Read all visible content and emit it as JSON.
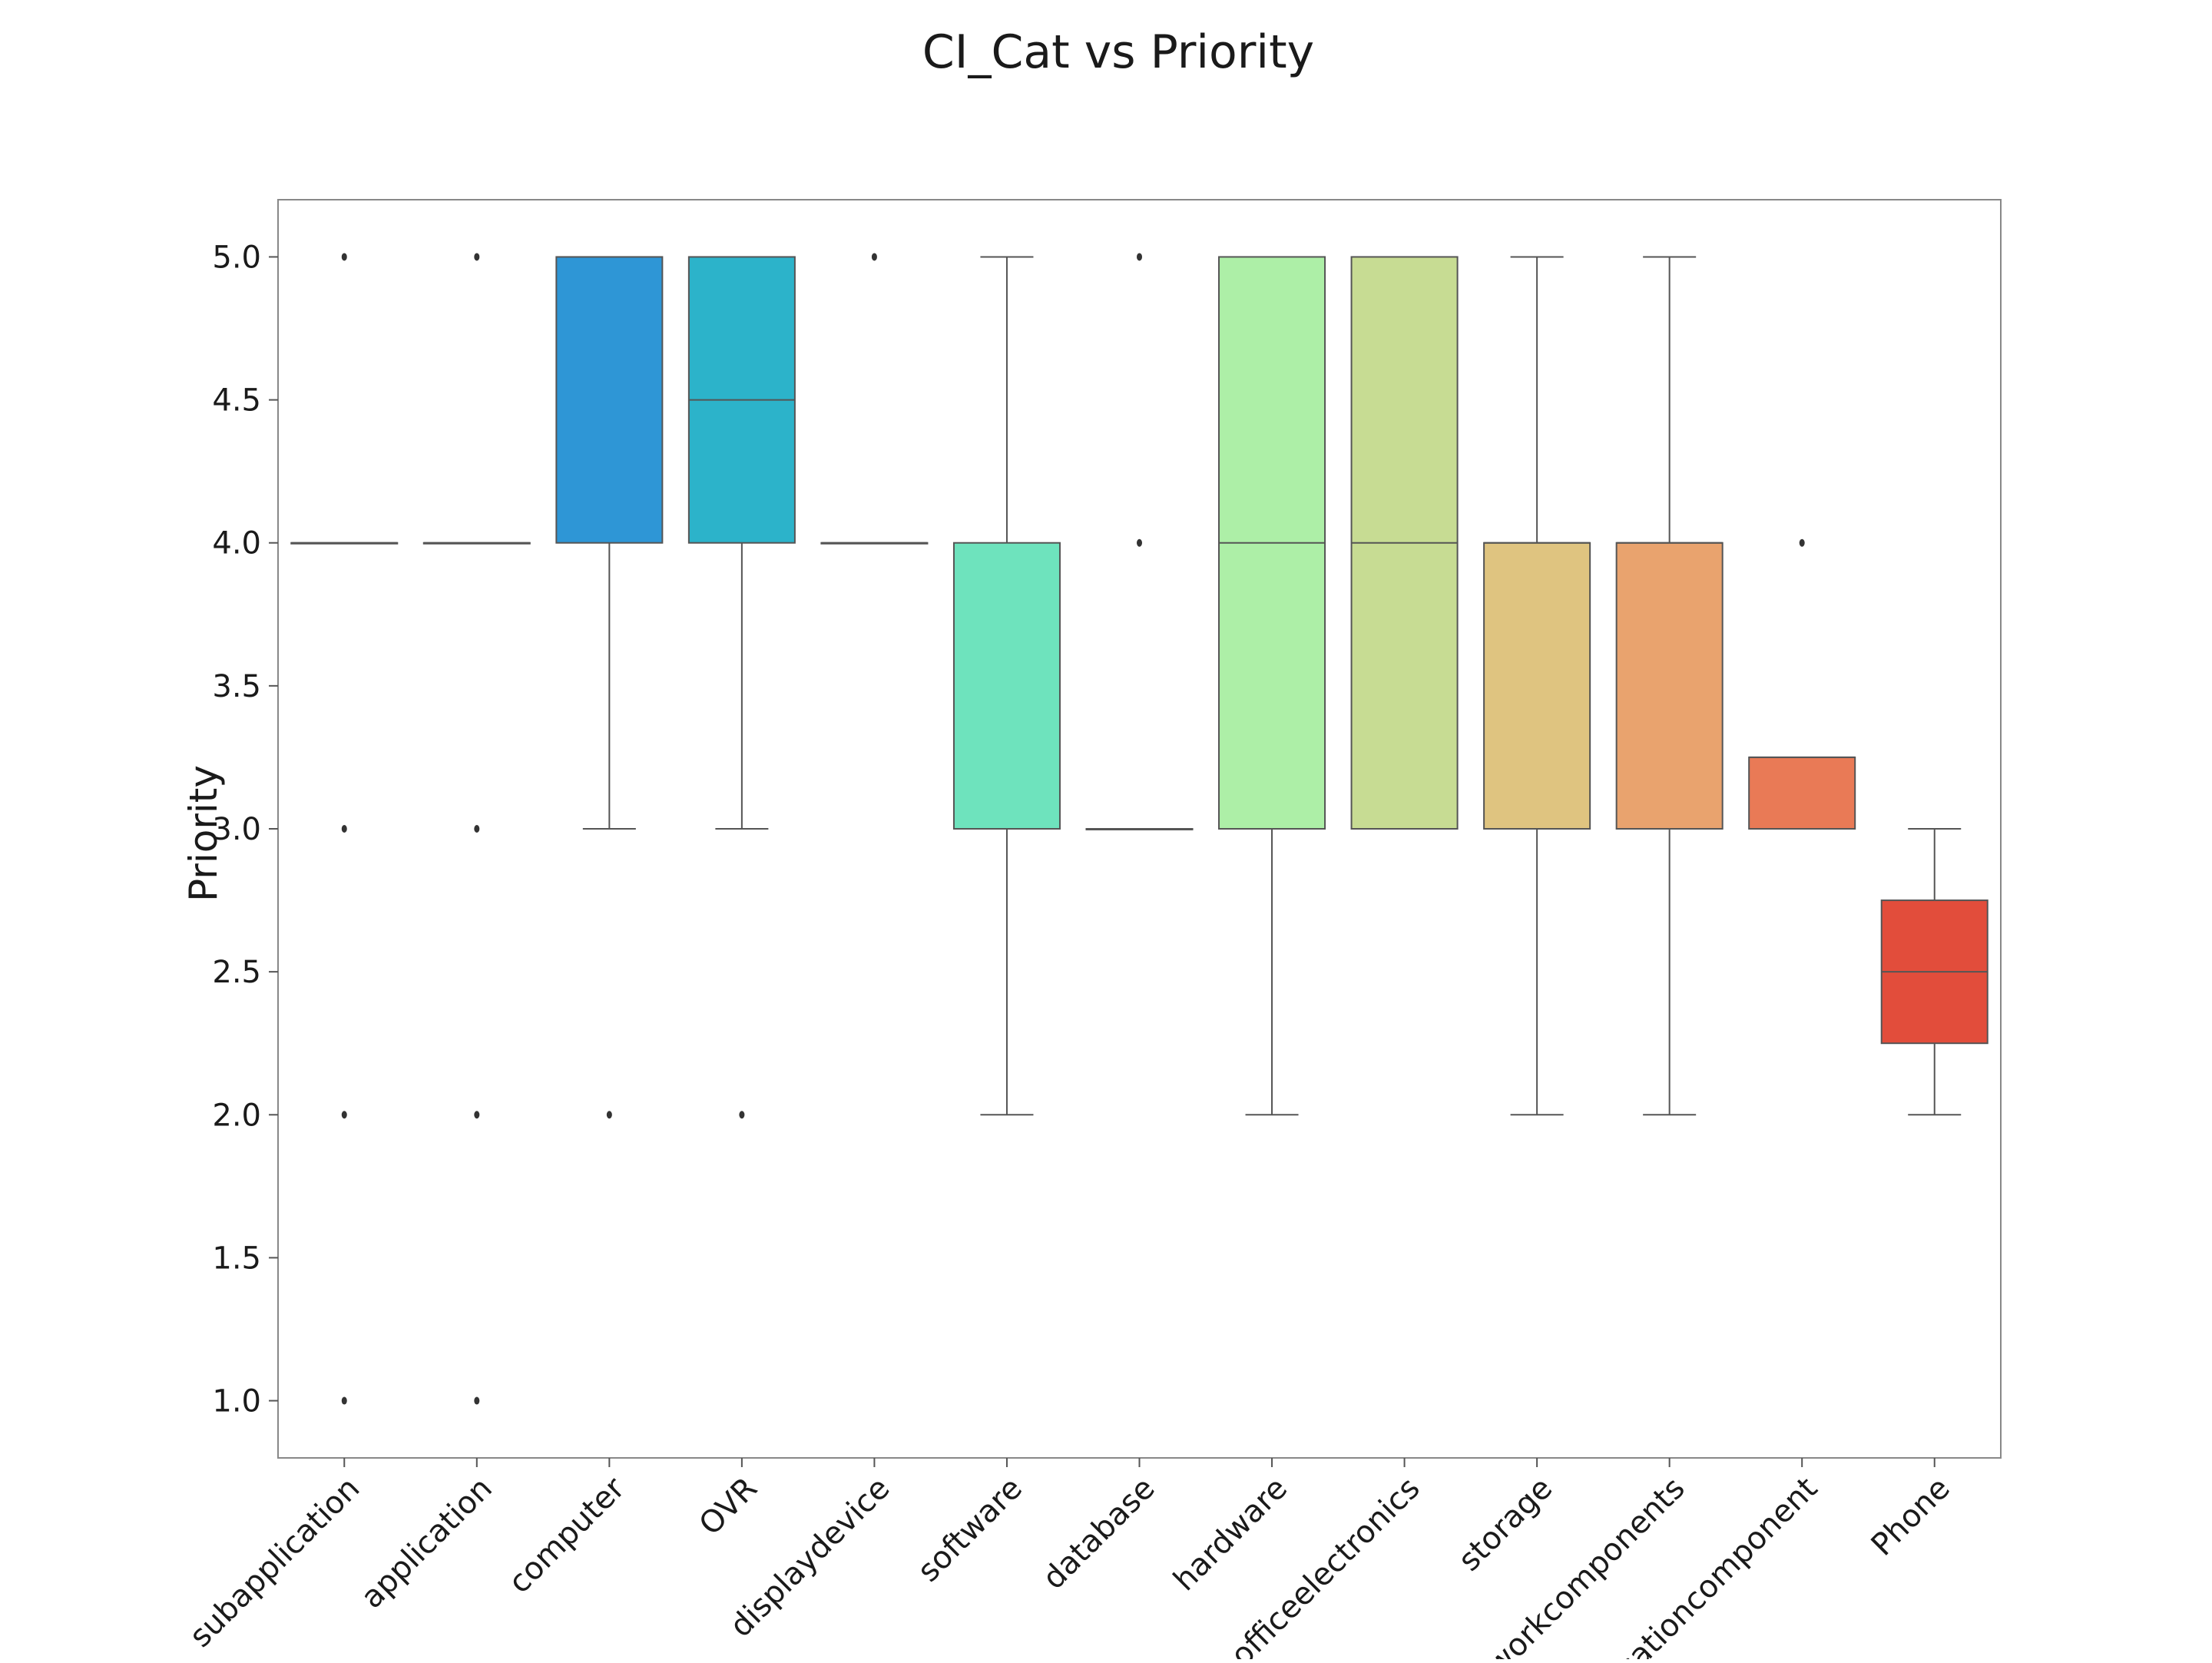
{
  "chart_data": {
    "type": "box",
    "title": "CI_Cat vs Priority",
    "xlabel": "",
    "ylabel": "Priority",
    "ylim": [
      0.8,
      5.2
    ],
    "yticks": [
      "1.0",
      "1.5",
      "2.0",
      "2.5",
      "3.0",
      "3.5",
      "4.0",
      "4.5",
      "5.0"
    ],
    "ytick_values": [
      1.0,
      1.5,
      2.0,
      2.5,
      3.0,
      3.5,
      4.0,
      4.5,
      5.0
    ],
    "grid": false,
    "legend": "none",
    "categories": [
      "subapplication",
      "application",
      "computer",
      "OVR",
      "displaydevice",
      "software",
      "database",
      "hardware",
      "officeelectronics",
      "storage",
      "networkcomponents",
      "applicationcomponent",
      "Phone"
    ],
    "boxes": [
      {
        "category": "subapplication",
        "color": "#4f4fe2",
        "q1": 4.0,
        "median": 4.0,
        "q3": 4.0,
        "whisker_low": 4.0,
        "whisker_high": 4.0,
        "outliers": [
          5.0,
          3.0,
          2.0,
          1.0
        ]
      },
      {
        "category": "application",
        "color": "#3d78f0",
        "q1": 4.0,
        "median": 4.0,
        "q3": 4.0,
        "whisker_low": 4.0,
        "whisker_high": 4.0,
        "outliers": [
          5.0,
          3.0,
          2.0,
          1.0
        ]
      },
      {
        "category": "computer",
        "color": "#2e96d6",
        "q1": 4.0,
        "median": 5.0,
        "q3": 5.0,
        "whisker_low": 3.0,
        "whisker_high": 5.0,
        "outliers": [
          2.0
        ]
      },
      {
        "category": "OVR",
        "color": "#2cb3ca",
        "q1": 4.0,
        "median": 4.5,
        "q3": 5.0,
        "whisker_low": 3.0,
        "whisker_high": 5.0,
        "outliers": [
          2.0
        ]
      },
      {
        "category": "displaydevice",
        "color": "#40d0d0",
        "q1": 4.0,
        "median": 4.0,
        "q3": 4.0,
        "whisker_low": 4.0,
        "whisker_high": 4.0,
        "outliers": [
          5.0
        ]
      },
      {
        "category": "software",
        "color": "#6ee3bd",
        "q1": 3.0,
        "median": 3.0,
        "q3": 4.0,
        "whisker_low": 2.0,
        "whisker_high": 5.0,
        "outliers": []
      },
      {
        "category": "database",
        "color": "#8cefae",
        "q1": 3.0,
        "median": 3.0,
        "q3": 3.0,
        "whisker_low": 3.0,
        "whisker_high": 3.0,
        "outliers": [
          5.0,
          4.0
        ]
      },
      {
        "category": "hardware",
        "color": "#adefa7",
        "q1": 3.0,
        "median": 4.0,
        "q3": 5.0,
        "whisker_low": 2.0,
        "whisker_high": 5.0,
        "outliers": []
      },
      {
        "category": "officeelectronics",
        "color": "#c7dc93",
        "q1": 3.0,
        "median": 4.0,
        "q3": 5.0,
        "whisker_low": 3.0,
        "whisker_high": 5.0,
        "outliers": []
      },
      {
        "category": "storage",
        "color": "#dfc480",
        "q1": 3.0,
        "median": 4.0,
        "q3": 4.0,
        "whisker_low": 2.0,
        "whisker_high": 5.0,
        "outliers": []
      },
      {
        "category": "networkcomponents",
        "color": "#e9a36e",
        "q1": 3.0,
        "median": 4.0,
        "q3": 4.0,
        "whisker_low": 2.0,
        "whisker_high": 5.0,
        "outliers": []
      },
      {
        "category": "applicationcomponent",
        "color": "#e97a56",
        "q1": 3.0,
        "median": 3.25,
        "q3": 3.25,
        "whisker_low": 3.0,
        "whisker_high": 3.25,
        "outliers": [
          4.0
        ]
      },
      {
        "category": "Phone",
        "color": "#e24d3b",
        "q1": 2.25,
        "median": 2.5,
        "q3": 2.75,
        "whisker_low": 2.0,
        "whisker_high": 3.0,
        "outliers": []
      }
    ]
  }
}
